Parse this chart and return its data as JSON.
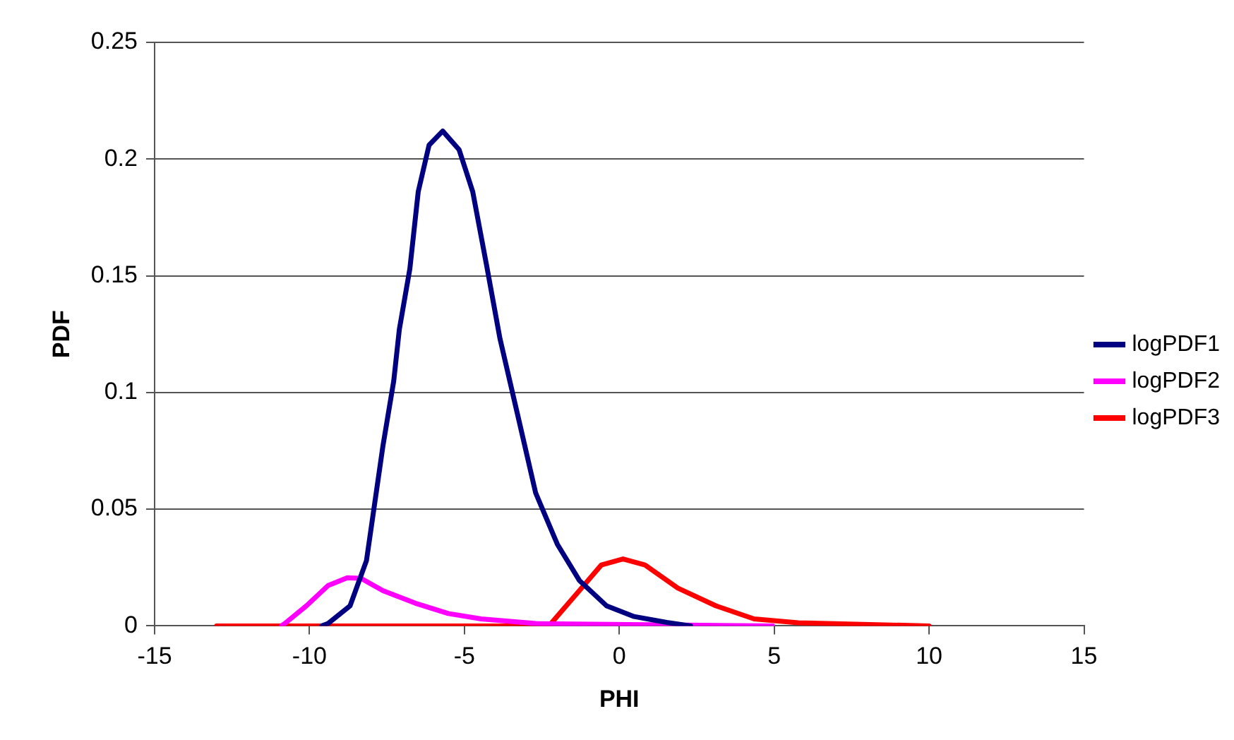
{
  "chart_data": {
    "type": "line",
    "xlabel": "PHI",
    "ylabel": "PDF",
    "xlim": [
      -15,
      15
    ],
    "xticks": [
      -15,
      -10,
      -5,
      0,
      5,
      10,
      15
    ],
    "ylim": [
      0,
      0.25
    ],
    "yticks": [
      0,
      0.05,
      0.1,
      0.15,
      0.2,
      0.25
    ],
    "grid": "y",
    "legend": "right",
    "marker": "none",
    "line_style": "solid",
    "series": [
      {
        "name": "logPDF1",
        "color": "#000080",
        "x": [
          -9.6,
          -9.4,
          -8.69,
          -8.16,
          -7.63,
          -7.28,
          -7.1,
          -6.76,
          -6.49,
          -6.14,
          -5.7,
          -5.17,
          -4.73,
          -4.29,
          -3.85,
          -3.23,
          -2.7,
          -2.0,
          -1.29,
          -0.41,
          0.48,
          1.53,
          2.3
        ],
        "values": [
          0,
          0.001,
          0.0086,
          0.028,
          0.077,
          0.105,
          0.127,
          0.153,
          0.186,
          0.206,
          0.212,
          0.204,
          0.186,
          0.155,
          0.123,
          0.0875,
          0.057,
          0.035,
          0.0195,
          0.0086,
          0.004,
          0.0015,
          0
        ]
      },
      {
        "name": "logPDF2",
        "color": "#ff00ff",
        "x": [
          -10.9,
          -10.8,
          -10.1,
          -9.4,
          -8.78,
          -8.34,
          -7.63,
          -6.58,
          -5.52,
          -4.46,
          -2.7,
          4.95
        ],
        "values": [
          0,
          0.001,
          0.0086,
          0.0173,
          0.0206,
          0.0204,
          0.0151,
          0.0097,
          0.0053,
          0.003,
          0.001,
          0
        ]
      },
      {
        "name": "logPDF3",
        "color": "#ff0000",
        "x": [
          -13,
          -2.27,
          -1.29,
          -0.58,
          0.12,
          0.83,
          1.89,
          3.12,
          4.35,
          5.77,
          10
        ],
        "values": [
          0,
          0,
          0.0151,
          0.0261,
          0.0287,
          0.0261,
          0.0162,
          0.0086,
          0.003,
          0.0013,
          0
        ]
      }
    ]
  }
}
